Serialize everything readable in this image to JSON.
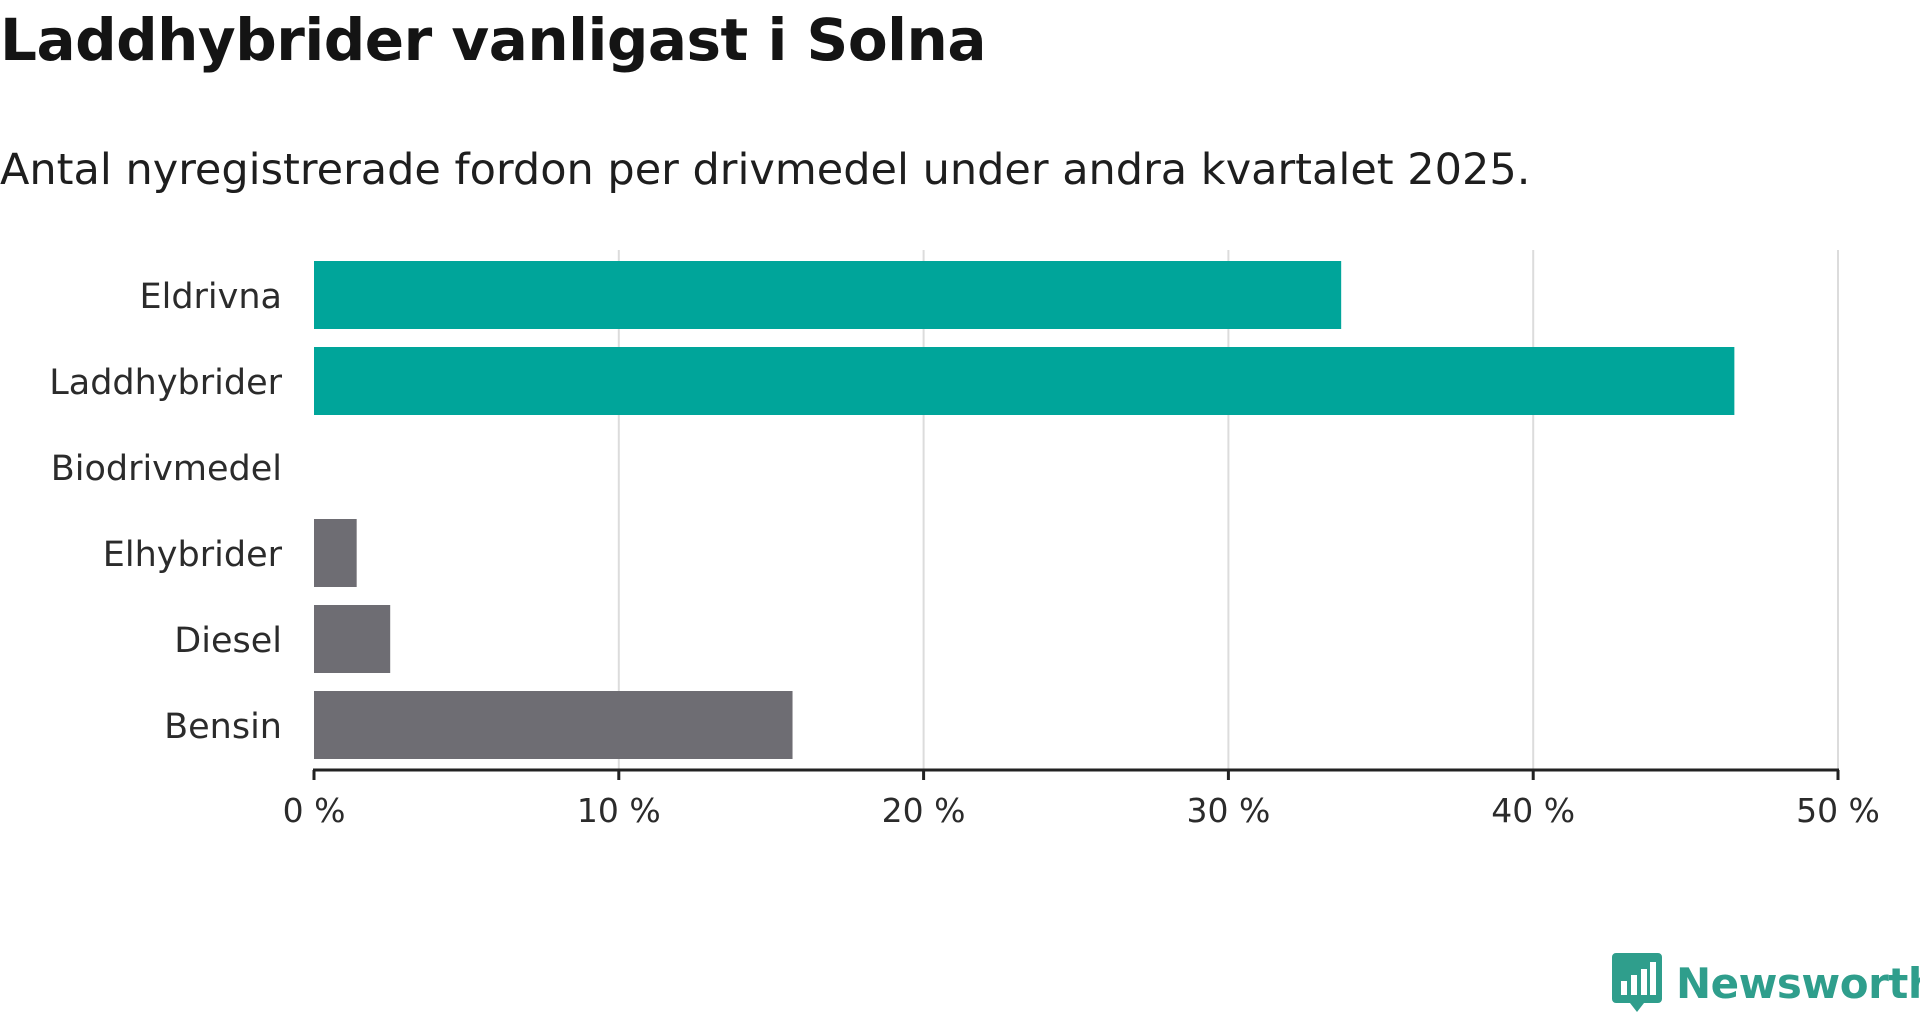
{
  "chart_data": {
    "type": "bar",
    "orientation": "horizontal",
    "title": "Laddhybrider vanligast i Solna",
    "subtitle": "Antal nyregistrerade fordon per drivmedel under andra kvartalet 2025.",
    "categories": [
      "Eldrivna",
      "Laddhybrider",
      "Biodrivmedel",
      "Elhybrider",
      "Diesel",
      "Bensin"
    ],
    "values": [
      33.7,
      46.6,
      0,
      1.4,
      2.5,
      15.7
    ],
    "unit": "%",
    "xlim": [
      0,
      50
    ],
    "xticks": [
      0,
      10,
      20,
      30,
      40,
      50
    ],
    "xtick_labels": [
      "0 %",
      "10 %",
      "20 %",
      "30 %",
      "40 %",
      "50 %"
    ],
    "grid": true,
    "highlight_categories": [
      "Eldrivna",
      "Laddhybrider"
    ],
    "colors": {
      "highlight": "#00a59a",
      "default": "#6e6d73",
      "grid": "#dcdcdc",
      "axis": "#222222"
    }
  },
  "brand": {
    "name": "Newsworthy",
    "icon": "newsworthy-logo-icon",
    "color": "#2f9e8c"
  }
}
